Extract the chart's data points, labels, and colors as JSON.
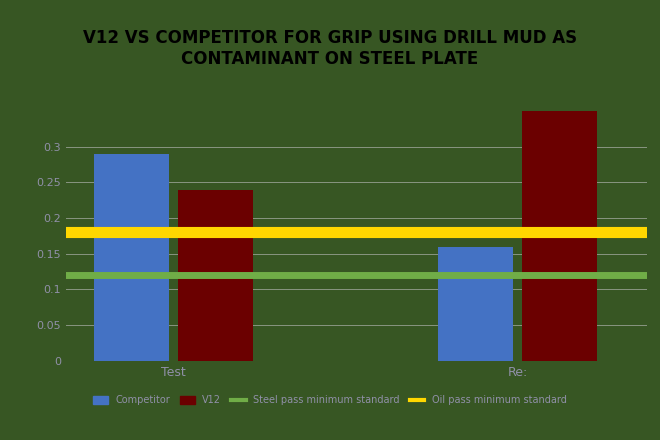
{
  "title": "V12 VS COMPETITOR FOR GRIP USING DRILL MUD AS\nCONTAMINANT ON STEEL PLATE",
  "categories": [
    "Test",
    "Re:"
  ],
  "competitor_values": [
    0.29,
    0.16
  ],
  "v12_values": [
    0.24,
    0.35
  ],
  "steel_pass_min": 0.12,
  "oil_pass_min": 0.18,
  "bar_color_competitor": "#4472C4",
  "bar_color_v12": "#6B0000",
  "line_color_steel": "#70AD47",
  "line_color_oil": "#FFD700",
  "background_color": "#375623",
  "title_bg_color": "#D9D9D9",
  "grid_color": "#C0C0C0",
  "ylim": [
    0,
    0.37
  ],
  "yticks": [
    0,
    0.05,
    0.1,
    0.15,
    0.2,
    0.25,
    0.3
  ],
  "legend_labels": [
    "Competitor",
    "V12",
    "Steel pass minimum standard",
    "Oil pass minimum standard"
  ],
  "title_fontsize": 12,
  "tick_color": "#9090A8",
  "bar_width": 0.35,
  "line_lw_steel": 5,
  "line_lw_oil": 8
}
